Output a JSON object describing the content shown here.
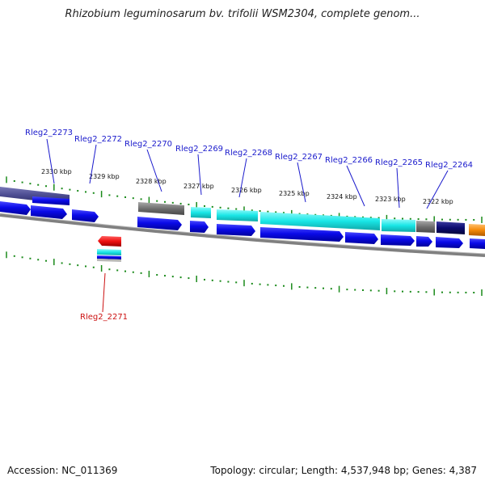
{
  "title": "Rhizobium leguminosarum bv. trifolii WSM2304, complete genom...",
  "footer": {
    "accession": "Accession: NC_011369",
    "summary": "Topology: circular; Length: 4,537,948 bp; Genes: 4,387"
  },
  "scale_labels": [
    "2330 kbp",
    "2329 kbp",
    "2328 kbp",
    "2327 kbp",
    "2326 kbp",
    "2325 kbp",
    "2324 kbp",
    "2323 kbp",
    "2322 kbp"
  ],
  "genes_top": [
    "Rleg2_2273",
    "Rleg2_2272",
    "Rleg2_2270",
    "Rleg2_2269",
    "Rleg2_2268",
    "Rleg2_2267",
    "Rleg2_2266",
    "Rleg2_2265",
    "Rleg2_2264"
  ],
  "gene_bottom": "Rleg2_2271",
  "colors": {
    "label_blue": "#1a1acc",
    "label_red": "#cc1111",
    "tick_green": "#1a8a1a",
    "gene_blue": "#0a0ae0",
    "gene_cyan": "#19e6e6",
    "gene_gray": "#707070",
    "gene_navy": "#0b0b6e",
    "gene_purple": "#4a4a8e",
    "gene_orange": "#f58a0a",
    "gene_red": "#ee1111",
    "backbone": "#808080"
  }
}
